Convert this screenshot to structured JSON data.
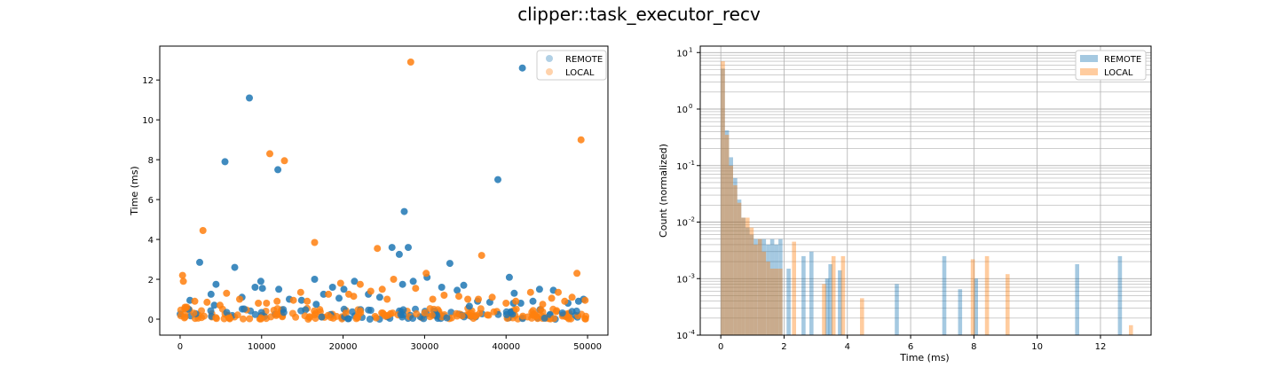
{
  "figure_title": "clipper::task_executor_recv",
  "colors": {
    "remote": "#1f77b4",
    "local": "#ff7f0e",
    "grid": "#b0b0b0"
  },
  "chart_data": [
    {
      "type": "scatter",
      "title": "",
      "xlabel": "",
      "ylabel": "Time (ms)",
      "xlim": [
        -2500,
        52500
      ],
      "ylim": [
        -0.8,
        13.7
      ],
      "xticks": [
        0,
        10000,
        20000,
        30000,
        40000,
        50000
      ],
      "xtick_labels": [
        "0",
        "10000",
        "20000",
        "30000",
        "40000",
        "50000"
      ],
      "yticks": [
        0,
        2,
        4,
        6,
        8,
        10,
        12
      ],
      "ytick_labels": [
        "0",
        "2",
        "4",
        "6",
        "8",
        "10",
        "12"
      ],
      "legend": {
        "placement": "top-right",
        "entries": [
          "REMOTE",
          "LOCAL"
        ]
      },
      "series": [
        {
          "name": "REMOTE",
          "x": [
            5500,
            8500,
            12000,
            27500,
            28000,
            39000,
            42000,
            1200,
            3800,
            4400,
            6700,
            9200,
            9900,
            10100,
            12100,
            13400,
            16500,
            17600,
            18700,
            20100,
            21400,
            23100,
            26000,
            26900,
            27300,
            28600,
            30300,
            32100,
            33100,
            34800,
            36500,
            40400,
            41000,
            41800,
            44100,
            45800,
            47600,
            48900,
            49500,
            2400,
            7600,
            14900,
            19500,
            24500,
            34000,
            38000,
            40900,
            43300,
            35500,
            4200,
            16700
          ],
          "y": [
            7.9,
            11.1,
            7.5,
            5.4,
            3.6,
            7.0,
            12.6,
            0.95,
            1.25,
            1.75,
            2.6,
            1.6,
            1.9,
            1.55,
            1.5,
            1.0,
            2.0,
            1.25,
            1.6,
            1.5,
            1.9,
            1.25,
            3.6,
            3.25,
            1.75,
            1.9,
            2.1,
            1.6,
            2.8,
            1.7,
            0.9,
            2.1,
            1.3,
            0.8,
            1.5,
            1.45,
            0.8,
            0.9,
            1.0,
            2.85,
            1.1,
            0.95,
            1.05,
            1.1,
            1.45,
            0.85,
            0.8,
            0.9,
            0.65,
            0.7,
            0.75
          ]
        },
        {
          "name": "LOCAL",
          "x": [
            300,
            400,
            600,
            2800,
            11000,
            12800,
            16500,
            24200,
            28300,
            37000,
            49200,
            48700,
            800,
            1800,
            3300,
            5700,
            9600,
            13900,
            14800,
            18200,
            19700,
            21300,
            22100,
            23400,
            24800,
            26200,
            28900,
            31000,
            32400,
            34200,
            36600,
            38300,
            41200,
            43000,
            45600,
            46400,
            48100,
            49700,
            7300,
            10600,
            15600,
            20700,
            25400,
            30200,
            35300,
            40000,
            44500,
            47200,
            4900,
            11900
          ],
          "y": [
            2.2,
            1.9,
            0.6,
            4.45,
            8.3,
            7.95,
            3.85,
            3.55,
            12.9,
            3.2,
            9.0,
            2.3,
            0.6,
            0.9,
            0.85,
            1.3,
            0.8,
            0.95,
            1.35,
            1.25,
            1.8,
            1.15,
            1.75,
            1.4,
            1.5,
            2.0,
            1.55,
            1.0,
            1.2,
            1.15,
            1.0,
            1.1,
            0.9,
            1.35,
            1.05,
            1.35,
            1.1,
            0.95,
            1.0,
            0.8,
            0.9,
            1.25,
            1.0,
            2.3,
            1.0,
            0.8,
            0.75,
            0.9,
            0.7,
            0.9
          ]
        }
      ]
    },
    {
      "type": "bar",
      "title": "",
      "xlabel": "Time (ms)",
      "ylabel": "Count (normalized)",
      "yscale": "log",
      "xlim": [
        -0.65,
        13.6
      ],
      "ylim": [
        0.0001,
        13
      ],
      "grid": true,
      "xticks": [
        0,
        2,
        4,
        6,
        8,
        10,
        12
      ],
      "xtick_labels": [
        "0",
        "2",
        "4",
        "6",
        "8",
        "10",
        "12"
      ],
      "ytick_labels": [
        "10^1",
        "10^0",
        "10^-1",
        "10^-2",
        "10^-3",
        "10^-4"
      ],
      "legend": {
        "placement": "top-right",
        "entries": [
          "REMOTE",
          "LOCAL"
        ]
      },
      "series": [
        {
          "name": "REMOTE",
          "x": [
            0.0,
            0.13,
            0.26,
            0.39,
            0.52,
            0.65,
            0.78,
            0.91,
            1.04,
            1.17,
            1.3,
            1.43,
            1.56,
            1.69,
            1.82,
            2.08,
            2.55,
            2.8,
            3.3,
            3.4,
            3.7,
            5.5,
            7.0,
            7.5,
            8.0,
            11.2,
            12.55
          ],
          "values": [
            5.2,
            0.42,
            0.14,
            0.06,
            0.025,
            0.012,
            0.008,
            0.006,
            0.005,
            0.005,
            0.005,
            0.004,
            0.005,
            0.004,
            0.005,
            0.0015,
            0.0025,
            0.003,
            0.001,
            0.0018,
            0.0014,
            0.0008,
            0.0025,
            0.00065,
            0.001,
            0.0018,
            0.0025
          ]
        },
        {
          "name": "LOCAL",
          "x": [
            0.0,
            0.13,
            0.26,
            0.39,
            0.52,
            0.65,
            0.78,
            0.91,
            1.04,
            1.17,
            1.3,
            1.43,
            1.56,
            1.69,
            1.82,
            2.25,
            3.2,
            3.5,
            3.8,
            4.4,
            7.9,
            8.35,
            9.0,
            12.9
          ],
          "values": [
            7.0,
            0.35,
            0.1,
            0.045,
            0.022,
            0.012,
            0.012,
            0.008,
            0.004,
            0.005,
            0.003,
            0.002,
            0.0015,
            0.0015,
            0.0015,
            0.0045,
            0.0008,
            0.0025,
            0.0025,
            0.00045,
            0.0022,
            0.0025,
            0.0012,
            0.00015
          ]
        }
      ]
    }
  ]
}
